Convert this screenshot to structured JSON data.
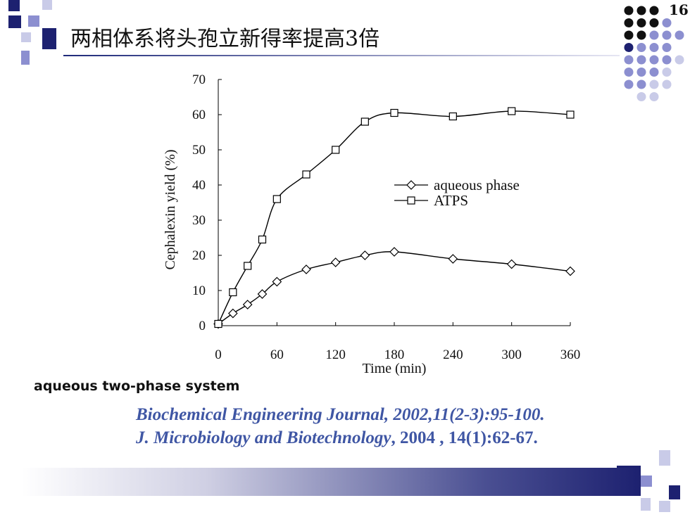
{
  "slide": {
    "page_number": "16",
    "title": "两相体系将头孢立新得率提高3倍",
    "caption": "aqueous two-phase system",
    "references": [
      {
        "journal": "Biochemical Engineering Journal, 2002,11(2-3):95-100."
      },
      {
        "journal": "J. Microbiology and Biotechnology",
        "detail": ", 2004 , 14(1):62-67."
      }
    ]
  },
  "colors": {
    "accent_dark": "#1d2170",
    "accent_mid": "#8c8fd0",
    "accent_light": "#c9cbe8",
    "reference_text": "#3f56a4"
  },
  "chart_data": {
    "type": "line",
    "title": "",
    "xlabel": "Time (min)",
    "ylabel": "Cephalexin yield (%)",
    "xlim": [
      0,
      360
    ],
    "ylim": [
      0,
      70
    ],
    "x_ticks": [
      0,
      60,
      120,
      180,
      240,
      300,
      360
    ],
    "y_ticks": [
      0,
      10,
      20,
      30,
      40,
      50,
      60,
      70
    ],
    "grid": false,
    "legend_position": "center-right",
    "series": [
      {
        "name": "aqueous phase",
        "marker": "diamond",
        "x": [
          0,
          15,
          30,
          45,
          60,
          90,
          120,
          150,
          180,
          240,
          300,
          360
        ],
        "y": [
          0.5,
          3.5,
          6,
          9,
          12.5,
          16,
          18,
          20,
          21,
          19,
          17.5,
          15.5
        ]
      },
      {
        "name": "ATPS",
        "marker": "square",
        "x": [
          0,
          15,
          30,
          45,
          60,
          90,
          120,
          150,
          180,
          240,
          300,
          360
        ],
        "y": [
          0.5,
          9.5,
          17,
          24.5,
          36,
          43,
          50,
          58,
          60.5,
          59.5,
          61,
          60
        ]
      }
    ]
  }
}
